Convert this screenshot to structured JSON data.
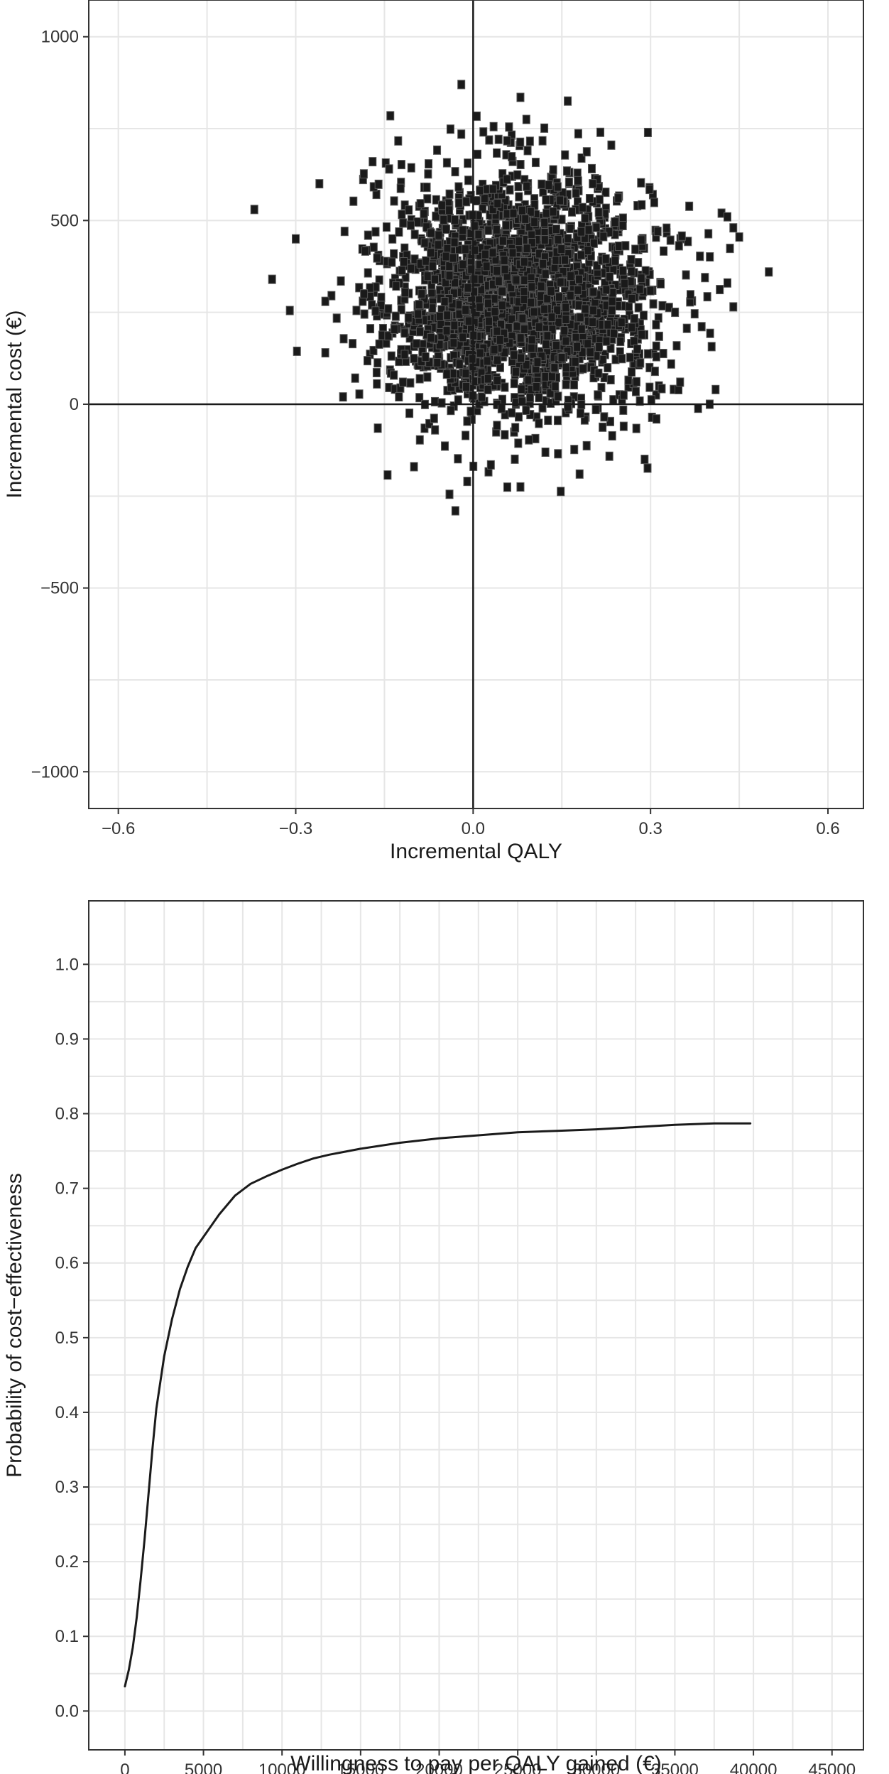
{
  "chart_data": [
    {
      "type": "scatter",
      "title": "",
      "xlabel": "Incremental QALY",
      "ylabel": "Incremental cost (€)",
      "xlim": [
        -0.65,
        0.66
      ],
      "ylim": [
        -1100,
        1100
      ],
      "x_ticks": [
        {
          "value": -0.6,
          "label": "−0.6"
        },
        {
          "value": -0.3,
          "label": "−0.3"
        },
        {
          "value": 0.0,
          "label": "0.0"
        },
        {
          "value": 0.3,
          "label": "0.3"
        },
        {
          "value": 0.6,
          "label": "0.6"
        }
      ],
      "y_ticks": [
        {
          "value": 1000,
          "label": "1000"
        },
        {
          "value": 500,
          "label": "500"
        },
        {
          "value": 0,
          "label": "0"
        },
        {
          "value": -500,
          "label": "−500"
        },
        {
          "value": -1000,
          "label": "−1000"
        }
      ],
      "reference_lines": {
        "x": 0,
        "y": 0
      },
      "grid": true,
      "point_color": "#1a1a1a",
      "point_count": 2500,
      "cloud": {
        "mean_x": 0.08,
        "mean_y": 300,
        "sd_x": 0.11,
        "sd_y": 160
      },
      "outliers": [
        {
          "x": -0.37,
          "y": 530
        },
        {
          "x": -0.3,
          "y": 450
        },
        {
          "x": -0.34,
          "y": 340
        },
        {
          "x": -0.31,
          "y": 255
        },
        {
          "x": -0.26,
          "y": 600
        },
        {
          "x": -0.25,
          "y": 280
        },
        {
          "x": -0.25,
          "y": 140
        },
        {
          "x": -0.22,
          "y": 20
        },
        {
          "x": -0.14,
          "y": 785
        },
        {
          "x": -0.17,
          "y": 660
        },
        {
          "x": -0.1,
          "y": -170
        },
        {
          "x": -0.04,
          "y": -245
        },
        {
          "x": -0.03,
          "y": -290
        },
        {
          "x": -0.01,
          "y": -210
        },
        {
          "x": -0.02,
          "y": 735
        },
        {
          "x": -0.02,
          "y": 870
        },
        {
          "x": 0.08,
          "y": 835
        },
        {
          "x": 0.09,
          "y": 775
        },
        {
          "x": 0.16,
          "y": 825
        },
        {
          "x": 0.03,
          "y": -165
        },
        {
          "x": 0.08,
          "y": -225
        },
        {
          "x": 0.18,
          "y": -190
        },
        {
          "x": 0.29,
          "y": -150
        },
        {
          "x": 0.31,
          "y": -40
        },
        {
          "x": 0.35,
          "y": 60
        },
        {
          "x": 0.4,
          "y": 0
        },
        {
          "x": 0.41,
          "y": 40
        },
        {
          "x": 0.42,
          "y": 520
        },
        {
          "x": 0.43,
          "y": 510
        },
        {
          "x": 0.44,
          "y": 480
        },
        {
          "x": 0.45,
          "y": 455
        },
        {
          "x": 0.44,
          "y": 265
        },
        {
          "x": 0.5,
          "y": 360
        },
        {
          "x": 0.43,
          "y": 330
        }
      ]
    },
    {
      "type": "line",
      "title": "",
      "xlabel": "Willingness to pay per QALY gained (€)",
      "ylabel": "Probability of cost−effectiveness",
      "xlim": [
        -2300,
        47000
      ],
      "ylim": [
        -0.052,
        1.085
      ],
      "x_ticks": [
        {
          "value": 0,
          "label": "0"
        },
        {
          "value": 5000,
          "label": "5000"
        },
        {
          "value": 10000,
          "label": "10000"
        },
        {
          "value": 15000,
          "label": "15000"
        },
        {
          "value": 20000,
          "label": "20000"
        },
        {
          "value": 25000,
          "label": "25000"
        },
        {
          "value": 30000,
          "label": "30000"
        },
        {
          "value": 35000,
          "label": "35000"
        },
        {
          "value": 40000,
          "label": "40000"
        },
        {
          "value": 45000,
          "label": "45000"
        }
      ],
      "y_ticks": [
        {
          "value": 0.0,
          "label": "0.0"
        },
        {
          "value": 0.1,
          "label": "0.1"
        },
        {
          "value": 0.2,
          "label": "0.2"
        },
        {
          "value": 0.3,
          "label": "0.3"
        },
        {
          "value": 0.4,
          "label": "0.4"
        },
        {
          "value": 0.5,
          "label": "0.5"
        },
        {
          "value": 0.6,
          "label": "0.6"
        },
        {
          "value": 0.7,
          "label": "0.7"
        },
        {
          "value": 0.8,
          "label": "0.8"
        },
        {
          "value": 0.9,
          "label": "0.9"
        },
        {
          "value": 1.0,
          "label": "1.0"
        }
      ],
      "grid": true,
      "line_color": "#1a1a1a",
      "series": [
        {
          "x": [
            0,
            250,
            500,
            750,
            1000,
            1250,
            1500,
            1750,
            2000,
            2500,
            3000,
            3500,
            4000,
            4500,
            5000,
            5500,
            6000,
            7000,
            8000,
            9000,
            10000,
            11000,
            12000,
            13000,
            14000,
            15000,
            17500,
            20000,
            22500,
            25000,
            27500,
            30000,
            32500,
            35000,
            37500,
            39800
          ],
          "y": [
            0.033,
            0.055,
            0.085,
            0.125,
            0.175,
            0.23,
            0.29,
            0.35,
            0.405,
            0.475,
            0.525,
            0.565,
            0.595,
            0.62,
            0.635,
            0.65,
            0.665,
            0.69,
            0.706,
            0.716,
            0.725,
            0.733,
            0.74,
            0.745,
            0.749,
            0.753,
            0.761,
            0.767,
            0.771,
            0.775,
            0.777,
            0.779,
            0.782,
            0.785,
            0.787,
            0.787
          ]
        }
      ]
    }
  ]
}
